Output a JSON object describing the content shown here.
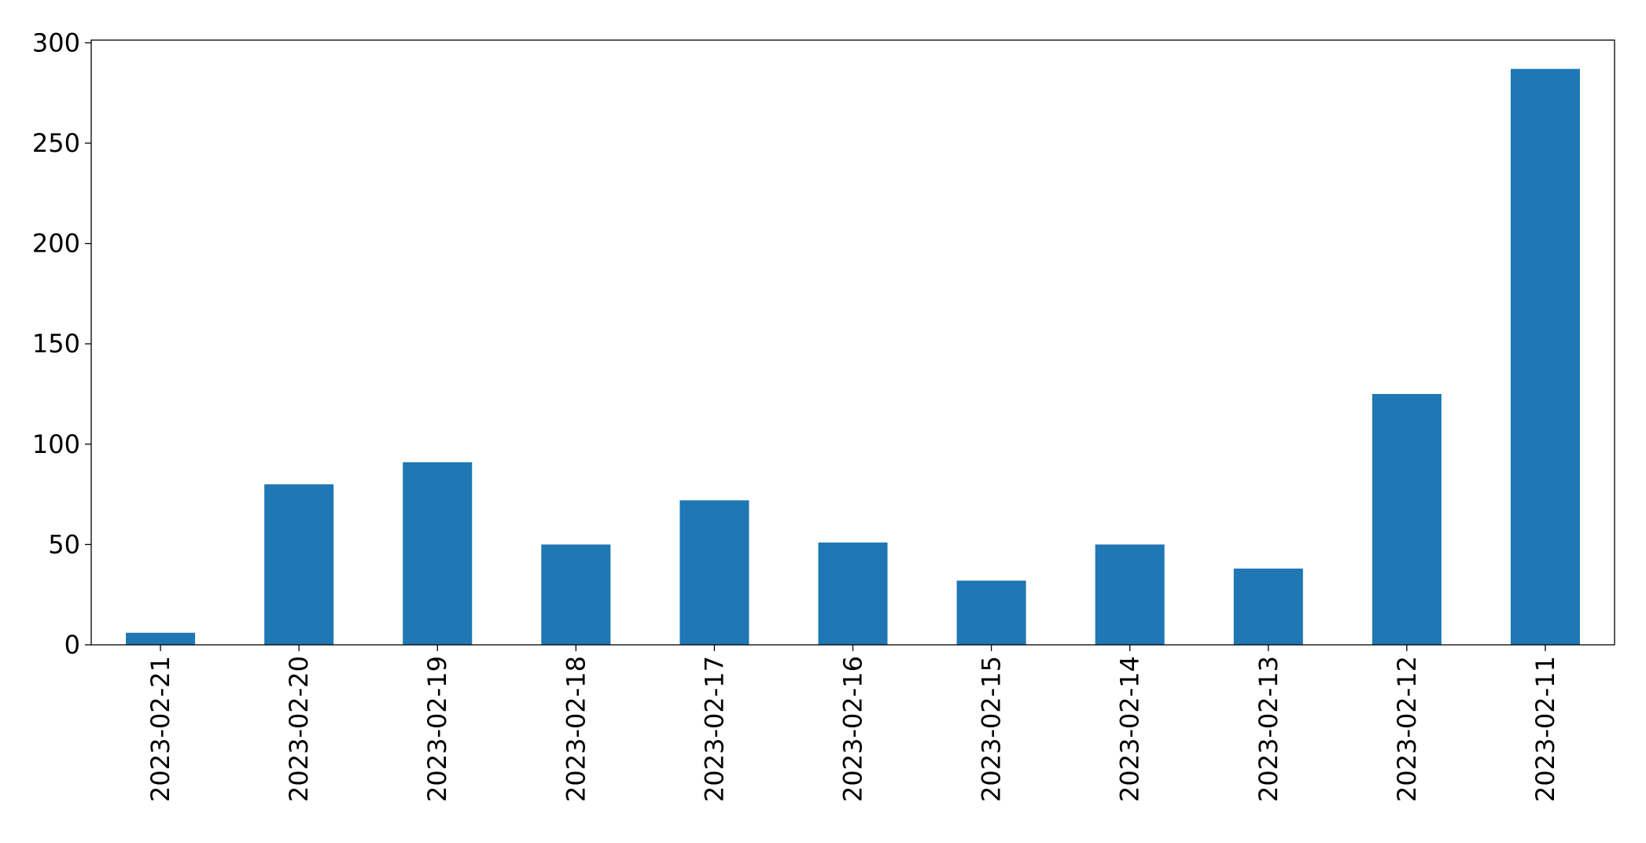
{
  "chart_data": {
    "type": "bar",
    "categories": [
      "2023-02-21",
      "2023-02-20",
      "2023-02-19",
      "2023-02-18",
      "2023-02-17",
      "2023-02-16",
      "2023-02-15",
      "2023-02-14",
      "2023-02-13",
      "2023-02-12",
      "2023-02-11"
    ],
    "values": [
      6,
      80,
      91,
      50,
      72,
      51,
      32,
      50,
      38,
      125,
      287
    ],
    "color": "#1f77b4",
    "ylim": [
      0,
      301.35
    ],
    "yticks": [
      0,
      50,
      100,
      150,
      200,
      250,
      300
    ],
    "grid": false
  }
}
